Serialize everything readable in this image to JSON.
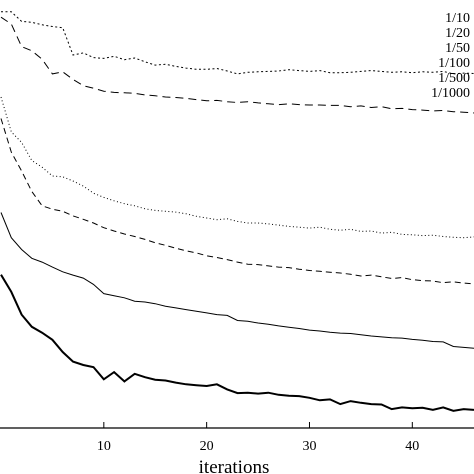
{
  "chart_data": {
    "type": "line",
    "title": "",
    "xlabel": "iterations",
    "ylabel": "",
    "xlim": [
      0,
      46
    ],
    "ylim": [
      0,
      100
    ],
    "grid": false,
    "legend_position": "top-right",
    "x_ticks": [
      10,
      20,
      30,
      40
    ],
    "colors": {
      "line": "#000000",
      "background": "#ffffff"
    },
    "series": [
      {
        "name": "1/10",
        "dash": "2,2.5",
        "stroke_width": 1,
        "x": [
          0,
          1,
          2,
          3,
          4,
          5,
          6,
          7,
          8,
          9,
          10,
          11,
          12,
          13,
          14,
          15,
          16,
          17,
          18,
          19,
          20,
          21,
          22,
          23,
          24,
          25,
          26,
          27,
          28,
          29,
          30,
          31,
          32,
          33,
          34,
          35,
          36,
          37,
          38,
          39,
          40,
          41,
          42,
          43,
          44,
          45,
          46
        ],
        "y": [
          99.1,
          99.1,
          96.8,
          96.6,
          96.0,
          95.6,
          95.3,
          88.8,
          89.3,
          88.2,
          88.0,
          88.5,
          87.7,
          88.1,
          87.2,
          86.4,
          86.6,
          86.1,
          85.7,
          85.4,
          85.4,
          85.6,
          85.0,
          84.3,
          84.7,
          84.8,
          84.9,
          85.0,
          85.3,
          85.1,
          84.9,
          85.1,
          84.6,
          84.6,
          84.7,
          84.9,
          85.1,
          84.9,
          84.7,
          84.8,
          84.6,
          84.8,
          84.7,
          84.9,
          84.3,
          84.5,
          84.4
        ]
      },
      {
        "name": "1/20",
        "dash": "8,5",
        "stroke_width": 1,
        "x": [
          0,
          1,
          2,
          3,
          4,
          5,
          6,
          7,
          8,
          9,
          10,
          11,
          12,
          13,
          14,
          15,
          16,
          17,
          18,
          19,
          20,
          21,
          22,
          23,
          24,
          25,
          26,
          27,
          28,
          29,
          30,
          31,
          32,
          33,
          34,
          35,
          36,
          37,
          38,
          39,
          40,
          41,
          42,
          43,
          44,
          45,
          46
        ],
        "y": [
          97.8,
          96.2,
          90.8,
          89.8,
          87.8,
          84.3,
          84.8,
          83.0,
          81.5,
          80.9,
          80.2,
          79.9,
          79.8,
          79.7,
          79.3,
          79.1,
          78.8,
          78.7,
          78.5,
          78.2,
          77.9,
          78.0,
          77.7,
          77.5,
          77.7,
          77.4,
          77.2,
          77.0,
          77.2,
          77.0,
          76.9,
          76.9,
          76.8,
          76.8,
          76.5,
          76.7,
          76.3,
          76.5,
          76.0,
          76.1,
          75.8,
          75.7,
          75.5,
          75.6,
          75.3,
          75.2,
          75.0
        ]
      },
      {
        "name": "1/50",
        "dash": "1,2.5",
        "stroke_width": 1,
        "x": [
          0,
          1,
          2,
          3,
          4,
          5,
          6,
          7,
          8,
          9,
          10,
          11,
          12,
          13,
          14,
          15,
          16,
          17,
          18,
          19,
          20,
          21,
          22,
          23,
          24,
          25,
          26,
          27,
          28,
          29,
          30,
          31,
          32,
          33,
          34,
          35,
          36,
          37,
          38,
          39,
          40,
          41,
          42,
          43,
          44,
          45,
          46
        ],
        "y": [
          78.8,
          70.5,
          68.0,
          63.7,
          62.1,
          60.0,
          59.8,
          58.8,
          57.6,
          55.9,
          54.9,
          54.1,
          53.4,
          52.9,
          52.2,
          51.8,
          51.6,
          51.4,
          51.0,
          50.4,
          50.0,
          49.6,
          49.8,
          49.2,
          48.8,
          48.8,
          48.6,
          48.3,
          48.0,
          47.8,
          47.6,
          47.8,
          47.3,
          47.1,
          47.3,
          46.8,
          46.9,
          46.4,
          46.6,
          46.1,
          46.0,
          45.8,
          45.9,
          45.6,
          45.4,
          45.3,
          45.5
        ]
      },
      {
        "name": "1/100",
        "dash": "6,4",
        "stroke_width": 1,
        "x": [
          0,
          1,
          2,
          3,
          4,
          5,
          6,
          7,
          8,
          9,
          10,
          11,
          12,
          13,
          14,
          15,
          16,
          17,
          18,
          19,
          20,
          21,
          22,
          23,
          24,
          25,
          26,
          27,
          28,
          29,
          30,
          31,
          32,
          33,
          34,
          35,
          36,
          37,
          38,
          39,
          40,
          41,
          42,
          43,
          44,
          45,
          46
        ],
        "y": [
          73.7,
          65.7,
          61.2,
          56.3,
          52.9,
          52.1,
          51.6,
          50.5,
          49.7,
          48.8,
          47.7,
          46.9,
          46.2,
          45.6,
          44.9,
          44.1,
          43.5,
          42.8,
          42.2,
          41.7,
          41.0,
          40.6,
          40.1,
          39.5,
          39.0,
          38.9,
          38.6,
          38.3,
          38.2,
          37.8,
          37.5,
          37.3,
          37.1,
          36.9,
          36.6,
          36.2,
          36.4,
          36.0,
          35.6,
          35.8,
          35.3,
          35.1,
          35.0,
          34.6,
          34.8,
          34.5,
          34.3
        ]
      },
      {
        "name": "1/500",
        "dash": "",
        "stroke_width": 1,
        "x": [
          0,
          1,
          2,
          3,
          4,
          5,
          6,
          7,
          8,
          9,
          10,
          11,
          12,
          13,
          14,
          15,
          16,
          17,
          18,
          19,
          20,
          21,
          22,
          23,
          24,
          25,
          26,
          27,
          28,
          29,
          30,
          31,
          32,
          33,
          34,
          35,
          36,
          37,
          38,
          39,
          40,
          41,
          42,
          43,
          44,
          45,
          46
        ],
        "y": [
          51.3,
          45.3,
          42.5,
          40.4,
          39.5,
          38.3,
          37.2,
          36.4,
          35.7,
          34.2,
          32.0,
          31.5,
          31.0,
          30.2,
          30.0,
          29.6,
          29.0,
          28.6,
          28.2,
          27.8,
          27.4,
          27.0,
          26.8,
          25.6,
          25.4,
          25.0,
          24.7,
          24.3,
          24.0,
          23.7,
          23.3,
          23.1,
          22.8,
          22.6,
          22.5,
          22.2,
          21.9,
          21.7,
          21.5,
          21.4,
          21.1,
          20.9,
          20.6,
          20.5,
          19.4,
          19.2,
          19.0
        ]
      },
      {
        "name": "1/1000",
        "dash": "",
        "stroke_width": 2,
        "x": [
          0,
          1,
          2,
          3,
          4,
          5,
          6,
          7,
          8,
          9,
          10,
          11,
          12,
          13,
          14,
          15,
          16,
          17,
          18,
          19,
          20,
          21,
          22,
          23,
          24,
          25,
          26,
          27,
          28,
          29,
          30,
          31,
          32,
          33,
          34,
          35,
          36,
          37,
          38,
          39,
          40,
          41,
          42,
          43,
          44,
          45,
          46
        ],
        "y": [
          36.5,
          32.4,
          27.0,
          24.1,
          22.7,
          21.0,
          18.1,
          15.8,
          15.0,
          14.5,
          11.6,
          13.3,
          11.1,
          12.9,
          12.1,
          11.5,
          11.3,
          10.8,
          10.4,
          10.2,
          10.0,
          10.4,
          9.2,
          8.3,
          8.4,
          8.2,
          8.4,
          7.9,
          7.7,
          7.6,
          7.2,
          6.6,
          6.8,
          5.7,
          6.4,
          6.0,
          5.7,
          5.6,
          4.5,
          4.9,
          4.7,
          4.8,
          4.3,
          4.9,
          4.1,
          4.5,
          4.3
        ]
      }
    ]
  }
}
